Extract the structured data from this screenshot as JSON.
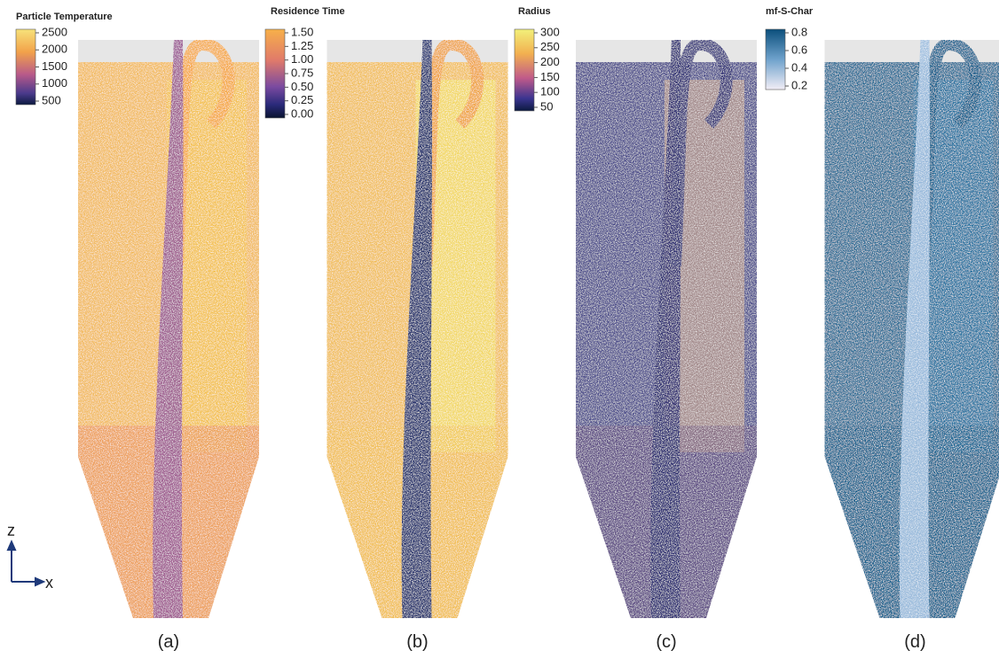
{
  "panels": [
    {
      "colorbar": {
        "title": "Particle Temperature",
        "ticks": [
          "2500",
          "2000",
          "1500",
          "1000",
          "500"
        ]
      },
      "caption": "(a)"
    },
    {
      "colorbar": {
        "title": "Residence Time",
        "ticks": [
          "1.50",
          "1.25",
          "1.00",
          "0.75",
          "0.50",
          "0.25",
          "0.00"
        ]
      },
      "caption": "(b)"
    },
    {
      "colorbar": {
        "title": "Radius",
        "ticks": [
          "300",
          "250",
          "200",
          "150",
          "100",
          "50"
        ]
      },
      "caption": "(c)"
    },
    {
      "colorbar": {
        "title": "mf-S-Char",
        "ticks": [
          "0.8",
          "0.6",
          "0.4",
          "0.2"
        ]
      },
      "caption": "(d)"
    }
  ],
  "axes": {
    "vertical": "z",
    "horizontal": "x"
  }
}
